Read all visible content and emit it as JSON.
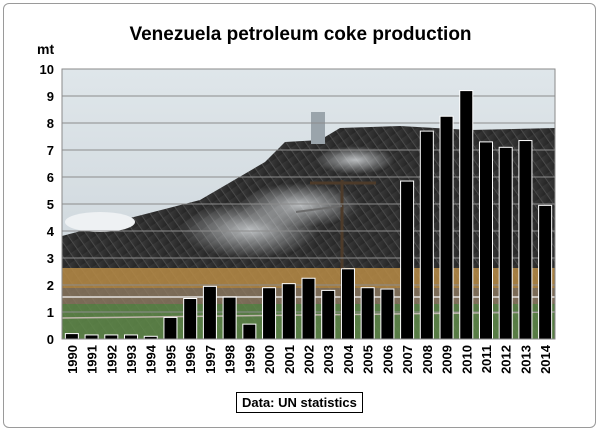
{
  "chart_data": {
    "type": "bar",
    "title": "Venezuela petroleum coke production",
    "ylabel": "mt",
    "xlabel": "",
    "ylim": [
      0,
      10
    ],
    "yticks": [
      0,
      1,
      2,
      3,
      4,
      5,
      6,
      7,
      8,
      9,
      10
    ],
    "grid": true,
    "bar_color": "#000000",
    "categories": [
      "1990",
      "1991",
      "1992",
      "1993",
      "1994",
      "1995",
      "1996",
      "1997",
      "1998",
      "1999",
      "2000",
      "2001",
      "2002",
      "2003",
      "2004",
      "2005",
      "2006",
      "2007",
      "2008",
      "2009",
      "2010",
      "2011",
      "2012",
      "2013",
      "2014"
    ],
    "values": [
      0.2,
      0.15,
      0.15,
      0.15,
      0.1,
      0.8,
      1.5,
      1.95,
      1.55,
      0.55,
      1.9,
      2.05,
      2.25,
      1.8,
      2.6,
      1.9,
      1.85,
      5.85,
      7.7,
      8.25,
      9.2,
      7.3,
      7.1,
      7.35,
      4.95
    ],
    "source_note": "Data: UN statistics"
  }
}
